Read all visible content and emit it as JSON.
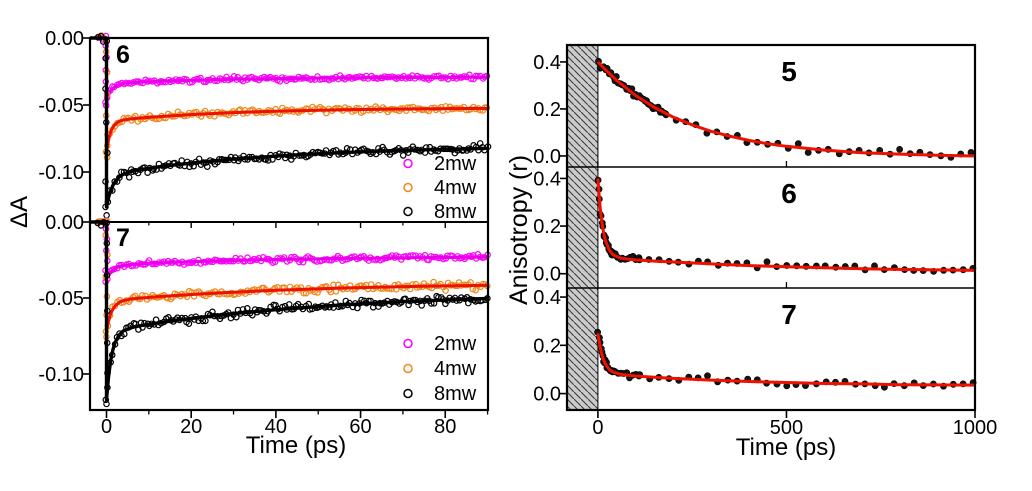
{
  "page": {
    "background": "#ffffff"
  },
  "chart_data": [
    {
      "id": "delta_a_figure",
      "type": "scatter",
      "description": "Power-dependent transient absorption decays",
      "xlabel": "Time (ps)",
      "ylabel": "ΔA",
      "xlim": [
        -3.9,
        90.1
      ],
      "x_tick_vals": [
        0,
        20,
        40,
        60,
        80
      ],
      "x_tick_labels": [
        "0",
        "20",
        "40",
        "60",
        "80"
      ],
      "x_minor_ticks": [
        10,
        30,
        50,
        70,
        90
      ],
      "legend_position": "lower right",
      "legend_entries": [
        {
          "label": "2mw",
          "color": "#ff00ff"
        },
        {
          "label": "4mw",
          "color": "#f08619"
        },
        {
          "label": "8mw",
          "color": "#000000"
        }
      ],
      "panels": [
        {
          "label": "6",
          "ylim": [
            -0.1373,
            0
          ],
          "y_tick_vals": [
            0,
            -0.05,
            -0.1
          ],
          "y_tick_labels": [
            "0.00",
            "-0.05",
            "-0.10"
          ],
          "series": [
            {
              "name": "2mw",
              "marker": "open-circle",
              "marker_color": "#ff00ff",
              "line_color": "#e800e8",
              "noise": 0.0012,
              "fit": [
                [
                  0,
                  -0.048
                ],
                [
                  0.5,
                  -0.0431
                ],
                [
                  1,
                  -0.0389
                ],
                [
                  1.5,
                  -0.0378
                ],
                [
                  2,
                  -0.0363
                ],
                [
                  3,
                  -0.0347
                ],
                [
                  4,
                  -0.0339
                ],
                [
                  6,
                  -0.0332
                ],
                [
                  8,
                  -0.0328
                ],
                [
                  12,
                  -0.0324
                ],
                [
                  16,
                  -0.0319
                ],
                [
                  22,
                  -0.0314
                ],
                [
                  30,
                  -0.0308
                ],
                [
                  40,
                  -0.0303
                ],
                [
                  55,
                  -0.0298
                ],
                [
                  70,
                  -0.0295
                ],
                [
                  90,
                  -0.0292
                ]
              ]
            },
            {
              "name": "4mw",
              "marker": "open-circle",
              "marker_color": "#f08619",
              "line_color": "#ee1100",
              "noise": 0.0016,
              "fit": [
                [
                  0,
                  -0.085
                ],
                [
                  0.5,
                  -0.0758
                ],
                [
                  1,
                  -0.0701
                ],
                [
                  1.5,
                  -0.0666
                ],
                [
                  2,
                  -0.0645
                ],
                [
                  3,
                  -0.0622
                ],
                [
                  4,
                  -0.0612
                ],
                [
                  6,
                  -0.0602
                ],
                [
                  8,
                  -0.0597
                ],
                [
                  12,
                  -0.0587
                ],
                [
                  16,
                  -0.0579
                ],
                [
                  22,
                  -0.0568
                ],
                [
                  30,
                  -0.0557
                ],
                [
                  40,
                  -0.0546
                ],
                [
                  55,
                  -0.0536
                ],
                [
                  70,
                  -0.053
                ],
                [
                  90,
                  -0.0525
                ]
              ]
            },
            {
              "name": "8mw",
              "marker": "open-circle",
              "marker_color": "#000000",
              "line_color": "#000000",
              "noise": 0.0022,
              "fit": [
                [
                  0,
                  -0.126
                ],
                [
                  0.5,
                  -0.1189
                ],
                [
                  1,
                  -0.1138
                ],
                [
                  1.5,
                  -0.11
                ],
                [
                  2,
                  -0.1073
                ],
                [
                  3,
                  -0.1037
                ],
                [
                  4,
                  -0.1016
                ],
                [
                  6,
                  -0.0994
                ],
                [
                  8,
                  -0.0981
                ],
                [
                  12,
                  -0.0963
                ],
                [
                  16,
                  -0.0947
                ],
                [
                  22,
                  -0.0927
                ],
                [
                  30,
                  -0.0904
                ],
                [
                  40,
                  -0.0881
                ],
                [
                  55,
                  -0.0856
                ],
                [
                  70,
                  -0.0838
                ],
                [
                  90,
                  -0.0823
                ]
              ]
            }
          ]
        },
        {
          "label": "7",
          "ylim": [
            -0.1237,
            0
          ],
          "y_tick_vals": [
            0,
            -0.05,
            -0.1
          ],
          "y_tick_labels": [
            "0.00",
            "-0.05",
            "-0.10"
          ],
          "series": [
            {
              "name": "2mw",
              "marker": "open-circle",
              "marker_color": "#ff00ff",
              "line_color": "#e800e8",
              "noise": 0.0012,
              "fit": [
                [
                  0,
                  -0.0375
                ],
                [
                  0.5,
                  -0.0349
                ],
                [
                  1,
                  -0.033
                ],
                [
                  1.5,
                  -0.0316
                ],
                [
                  2,
                  -0.0306
                ],
                [
                  3,
                  -0.0293
                ],
                [
                  4,
                  -0.0286
                ],
                [
                  6,
                  -0.0279
                ],
                [
                  8,
                  -0.0275
                ],
                [
                  12,
                  -0.0269
                ],
                [
                  16,
                  -0.0265
                ],
                [
                  22,
                  -0.026
                ],
                [
                  30,
                  -0.0253
                ],
                [
                  40,
                  -0.0247
                ],
                [
                  55,
                  -0.024
                ],
                [
                  70,
                  -0.0235
                ],
                [
                  90,
                  -0.0231
                ]
              ]
            },
            {
              "name": "4mw",
              "marker": "open-circle",
              "marker_color": "#f08619",
              "line_color": "#ee1100",
              "noise": 0.0016,
              "fit": [
                [
                  0,
                  -0.072
                ],
                [
                  0.5,
                  -0.0651
                ],
                [
                  1,
                  -0.0604
                ],
                [
                  1.5,
                  -0.0573
                ],
                [
                  2,
                  -0.0553
                ],
                [
                  3,
                  -0.0529
                ],
                [
                  4,
                  -0.0517
                ],
                [
                  6,
                  -0.0506
                ],
                [
                  8,
                  -0.0501
                ],
                [
                  12,
                  -0.0492
                ],
                [
                  16,
                  -0.0484
                ],
                [
                  22,
                  -0.0474
                ],
                [
                  30,
                  -0.0462
                ],
                [
                  40,
                  -0.0449
                ],
                [
                  55,
                  -0.0435
                ],
                [
                  70,
                  -0.0425
                ],
                [
                  90,
                  -0.0416
                ]
              ]
            },
            {
              "name": "8mw",
              "marker": "open-circle",
              "marker_color": "#000000",
              "line_color": "#000000",
              "noise": 0.0022,
              "fit": [
                [
                  0,
                  -0.117
                ],
                [
                  0.5,
                  -0.1014
                ],
                [
                  1,
                  -0.091
                ],
                [
                  1.5,
                  -0.0841
                ],
                [
                  2,
                  -0.0795
                ],
                [
                  3,
                  -0.0742
                ],
                [
                  4,
                  -0.0716
                ],
                [
                  6,
                  -0.0694
                ],
                [
                  8,
                  -0.0682
                ],
                [
                  12,
                  -0.0665
                ],
                [
                  16,
                  -0.0649
                ],
                [
                  22,
                  -0.0627
                ],
                [
                  30,
                  -0.0603
                ],
                [
                  40,
                  -0.0577
                ],
                [
                  55,
                  -0.0547
                ],
                [
                  70,
                  -0.0524
                ],
                [
                  90,
                  -0.0503
                ]
              ]
            }
          ]
        }
      ],
      "spike_fracs": [
        0.12,
        0.3,
        0.5,
        0.68,
        0.85,
        1.0,
        1.05
      ],
      "scatter_segments": [
        [
          -2,
          0,
          0.65
        ],
        [
          0.3,
          90,
          0.55
        ]
      ]
    },
    {
      "id": "anisotropy_figure",
      "type": "scatter",
      "description": "Time-resolved fluorescence anisotropy decays with fits",
      "xlabel": "Time (ps)",
      "ylabel": "Anisotropy (r)",
      "xlim": [
        -82,
        1000
      ],
      "x_tick_vals": [
        0,
        500,
        1000
      ],
      "x_tick_labels": [
        "0",
        "500",
        "1000"
      ],
      "hatch_region": [
        -82,
        0
      ],
      "hatch_fill": "#cbcbcb",
      "hatch_line_color": "#3c3c3c",
      "marker_color": "#151515",
      "fit_color": "#ee1100",
      "panels": [
        {
          "label": "5",
          "ylim": [
            -0.047,
            0.472
          ],
          "y_tick_vals": [
            0.4,
            0.2,
            0.0
          ],
          "y_tick_labels": [
            "0.4",
            "0.2",
            "0.0"
          ],
          "noise": 0.011,
          "scatter_segments": [
            [
              0,
              180,
              5
            ],
            [
              180,
              1000,
              27
            ]
          ],
          "fit": [
            [
              0,
              0.4
            ],
            [
              20,
              0.366
            ],
            [
              50,
              0.321
            ],
            [
              100,
              0.257
            ],
            [
              150,
              0.206
            ],
            [
              200,
              0.165
            ],
            [
              250,
              0.132
            ],
            [
              300,
              0.105
            ],
            [
              350,
              0.084
            ],
            [
              400,
              0.066
            ],
            [
              450,
              0.052
            ],
            [
              500,
              0.041
            ],
            [
              600,
              0.025
            ],
            [
              700,
              0.014
            ],
            [
              800,
              0.008
            ],
            [
              900,
              0.003
            ],
            [
              1000,
              0.0
            ]
          ]
        },
        {
          "label": "6",
          "ylim": [
            -0.06,
            0.448
          ],
          "y_tick_vals": [
            0.4,
            0.2,
            0.0
          ],
          "y_tick_labels": [
            "0.4",
            "0.2",
            "0.0"
          ],
          "noise": 0.01,
          "scatter_segments": [
            [
              0,
              45,
              2.2
            ],
            [
              45,
              110,
              7
            ],
            [
              110,
              1000,
              26
            ]
          ],
          "fit": [
            [
              0,
              0.4
            ],
            [
              3,
              0.332
            ],
            [
              6,
              0.277
            ],
            [
              10,
              0.222
            ],
            [
              15,
              0.172
            ],
            [
              20,
              0.138
            ],
            [
              30,
              0.099
            ],
            [
              40,
              0.08
            ],
            [
              60,
              0.066
            ],
            [
              80,
              0.061
            ],
            [
              100,
              0.058
            ],
            [
              150,
              0.053
            ],
            [
              200,
              0.049
            ],
            [
              300,
              0.041
            ],
            [
              400,
              0.034
            ],
            [
              500,
              0.029
            ],
            [
              600,
              0.025
            ],
            [
              700,
              0.021
            ],
            [
              800,
              0.018
            ],
            [
              900,
              0.016
            ],
            [
              1000,
              0.014
            ]
          ]
        },
        {
          "label": "7",
          "ylim": [
            -0.068,
            0.4375
          ],
          "y_tick_vals": [
            0.4,
            0.2,
            0.0
          ],
          "y_tick_labels": [
            "0.4",
            "0.2",
            "0.0"
          ],
          "noise": 0.01,
          "scatter_segments": [
            [
              0,
              45,
              2.5
            ],
            [
              45,
              110,
              8
            ],
            [
              110,
              1000,
              26
            ]
          ],
          "fit": [
            [
              0,
              0.25
            ],
            [
              3,
              0.218
            ],
            [
              6,
              0.192
            ],
            [
              10,
              0.164
            ],
            [
              15,
              0.139
            ],
            [
              20,
              0.122
            ],
            [
              30,
              0.1
            ],
            [
              40,
              0.089
            ],
            [
              60,
              0.08
            ],
            [
              80,
              0.076
            ],
            [
              100,
              0.073
            ],
            [
              150,
              0.068
            ],
            [
              200,
              0.063
            ],
            [
              300,
              0.056
            ],
            [
              400,
              0.05
            ],
            [
              500,
              0.046
            ],
            [
              600,
              0.042
            ],
            [
              700,
              0.04
            ],
            [
              800,
              0.037
            ],
            [
              900,
              0.036
            ],
            [
              1000,
              0.035
            ]
          ]
        }
      ]
    }
  ]
}
